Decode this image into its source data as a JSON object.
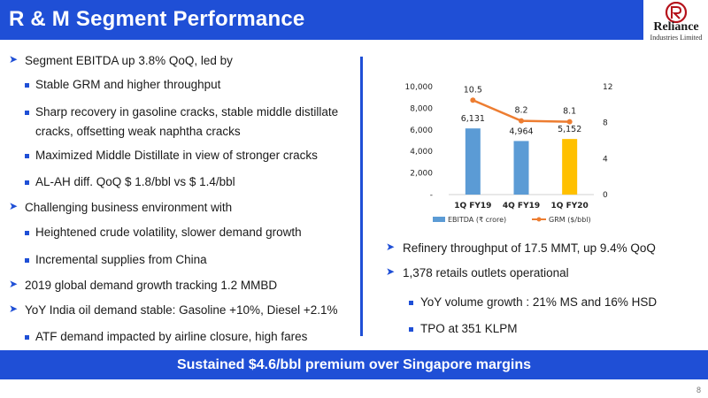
{
  "header": {
    "title": "R & M Segment Performance"
  },
  "logo": {
    "brand": "Reliance",
    "subtitle": "Industries Limited"
  },
  "left": {
    "items": [
      {
        "level": 1,
        "text": "Segment EBITDA up 3.8% QoQ, led by"
      },
      {
        "level": 2,
        "text": "Stable GRM and higher throughput"
      },
      {
        "level": 2,
        "text": "Sharp recovery in gasoline cracks, stable middle distillate",
        "cont": "cracks, offsetting weak naphtha cracks"
      },
      {
        "level": 2,
        "text": "Maximized Middle Distillate in view of stronger cracks"
      },
      {
        "level": 2,
        "text": "AL-AH diff. QoQ $ 1.8/bbl vs $ 1.4/bbl"
      },
      {
        "level": 1,
        "text": "Challenging business environment with"
      },
      {
        "level": 2,
        "text": "Heightened crude volatility, slower demand growth"
      },
      {
        "level": 2,
        "text": "Incremental supplies from China"
      },
      {
        "level": 1,
        "text": "2019 global demand growth tracking 1.2 MMBD"
      },
      {
        "level": 1,
        "text": "YoY India oil demand stable: Gasoline +10%, Diesel +2.1%"
      },
      {
        "level": 2,
        "text": "ATF demand impacted by airline closure, high fares"
      }
    ]
  },
  "right": {
    "items": [
      {
        "level": 1,
        "text": "Refinery throughput of 17.5 MMT, up 9.4% QoQ"
      },
      {
        "level": 1,
        "text": "1,378 retails outlets operational"
      },
      {
        "level": 2,
        "text": "YoY volume growth : 21% MS and 16% HSD"
      },
      {
        "level": 2,
        "text": "TPO at 351 KLPM"
      }
    ]
  },
  "chart_data": {
    "type": "bar",
    "categories": [
      "1Q FY19",
      "4Q FY19",
      "1Q FY20"
    ],
    "series": [
      {
        "name": "EBITDA (₹ crore)",
        "type": "bar",
        "axis": "left",
        "values": [
          6131,
          4964,
          5152
        ],
        "labels": [
          "6,131",
          "4,964",
          "5,152"
        ]
      },
      {
        "name": "GRM ($/bbl)",
        "type": "line",
        "axis": "right",
        "values": [
          10.5,
          8.2,
          8.1
        ],
        "labels": [
          "10.5",
          "8.2",
          "8.1"
        ]
      }
    ],
    "ylim": [
      0,
      10000
    ],
    "y_ticks": [
      "-",
      "2,000",
      "4,000",
      "6,000",
      "8,000",
      "10,000"
    ],
    "y2lim": [
      0,
      12
    ],
    "y2_ticks": [
      "0",
      "4",
      "8",
      "12"
    ],
    "grid": false,
    "legend": "bottom",
    "colors": {
      "bar_primary": "#5b9bd5",
      "bar_highlight": "#ffc000",
      "line": "#ed7d31"
    }
  },
  "banner": {
    "text": "Sustained $4.6/bbl premium over Singapore margins"
  },
  "page_number": "8"
}
